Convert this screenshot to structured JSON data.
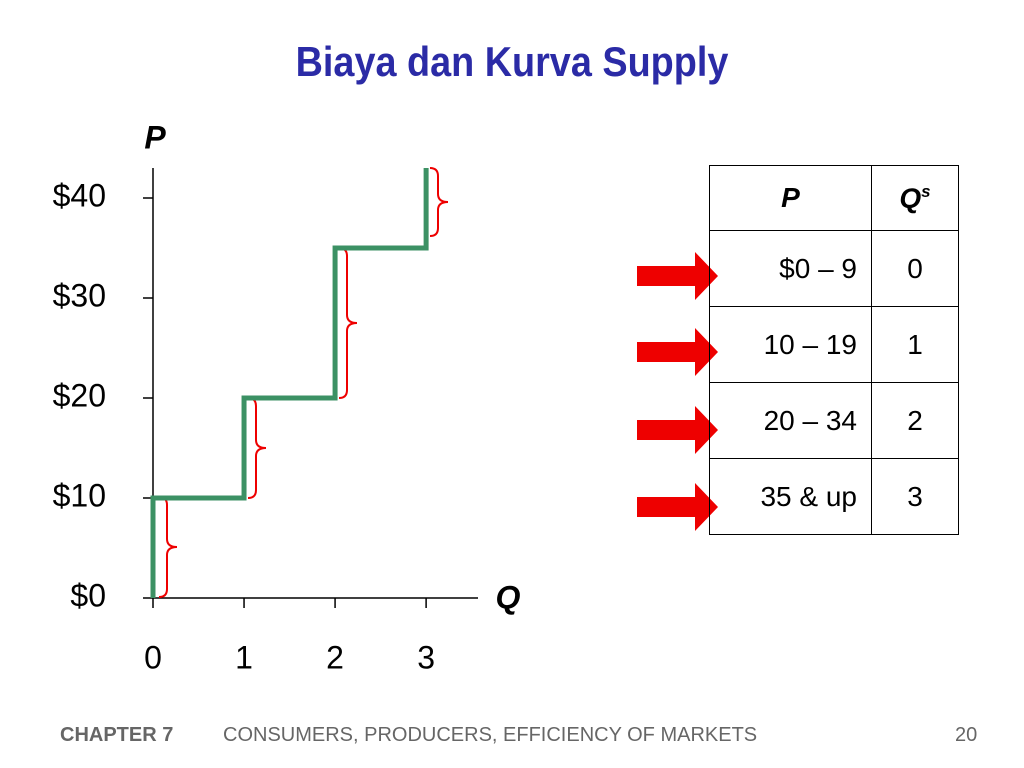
{
  "title": "Biaya dan Kurva Supply",
  "chart_data": {
    "type": "line",
    "x": [
      0,
      0,
      1,
      1,
      2,
      2,
      3,
      3
    ],
    "y": [
      0,
      10,
      10,
      20,
      20,
      35,
      35,
      43
    ],
    "color": "#3c9164",
    "xlim": [
      0,
      3.57
    ],
    "ylim": [
      0,
      43
    ],
    "xticks": [
      0,
      1,
      2,
      3
    ],
    "yticks": [
      {
        "value": 0,
        "label": "$0"
      },
      {
        "value": 10,
        "label": "$10"
      },
      {
        "value": 20,
        "label": "$20"
      },
      {
        "value": 30,
        "label": "$30"
      },
      {
        "value": 40,
        "label": "$40"
      }
    ],
    "x_label": "Q",
    "y_label": "P"
  },
  "table": {
    "header": [
      "P",
      "Q"
    ],
    "header_sup": "s",
    "rows": [
      [
        "$0 – 9",
        "0"
      ],
      [
        "10 – 19",
        "1"
      ],
      [
        "20 – 34",
        "2"
      ],
      [
        "35 & up",
        "3"
      ]
    ]
  },
  "footer": {
    "chapter": "CHAPTER 7",
    "text": "CONSUMERS, PRODUCERS, EFFICIENCY OF MARKETS",
    "page": "20"
  }
}
